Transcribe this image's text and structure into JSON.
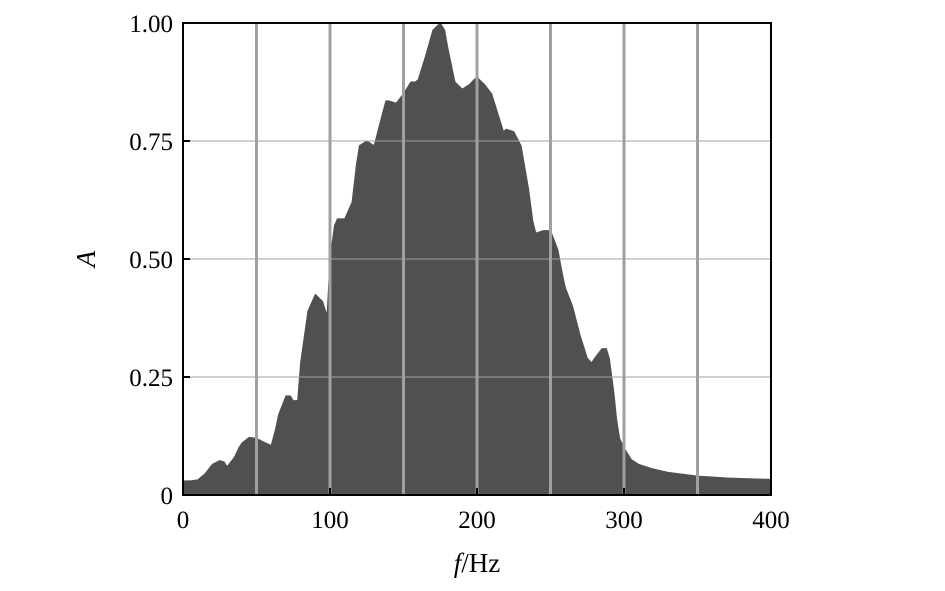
{
  "chart_data": {
    "type": "area",
    "title": "",
    "xlabel_symbol": "f",
    "xlabel_unit": "/Hz",
    "ylabel": "A",
    "xlim": [
      0,
      400
    ],
    "ylim": [
      0,
      1.0
    ],
    "x_ticks": [
      0,
      100,
      200,
      300,
      400
    ],
    "x_tick_labels": [
      "0",
      "100",
      "200",
      "300",
      "400"
    ],
    "y_ticks": [
      0,
      0.25,
      0.5,
      0.75,
      1.0
    ],
    "y_tick_labels": [
      "0",
      "0.25",
      "0.50",
      "0.75",
      "1.00"
    ],
    "x_gridlines": [
      50,
      100,
      150,
      200,
      250,
      300,
      350
    ],
    "y_gridlines": [
      0.25,
      0.5,
      0.75
    ],
    "grid": true,
    "fill_color": "#505050",
    "grid_color": "#a0a0a0",
    "x": [
      0,
      5,
      10,
      15,
      20,
      25,
      28,
      30,
      35,
      38,
      40,
      45,
      50,
      55,
      60,
      63,
      65,
      70,
      73,
      75,
      78,
      80,
      85,
      90,
      95,
      98,
      100,
      103,
      105,
      110,
      115,
      118,
      120,
      125,
      130,
      135,
      138,
      140,
      145,
      150,
      155,
      158,
      160,
      165,
      170,
      175,
      178,
      180,
      185,
      190,
      195,
      198,
      200,
      205,
      210,
      215,
      218,
      220,
      225,
      230,
      235,
      238,
      240,
      245,
      250,
      255,
      258,
      260,
      265,
      270,
      275,
      278,
      280,
      285,
      288,
      290,
      293,
      295,
      297,
      300,
      305,
      310,
      320,
      330,
      340,
      350,
      360,
      370,
      380,
      390,
      400
    ],
    "y": [
      0.03,
      0.03,
      0.032,
      0.045,
      0.065,
      0.073,
      0.07,
      0.06,
      0.08,
      0.1,
      0.11,
      0.122,
      0.12,
      0.112,
      0.105,
      0.14,
      0.17,
      0.21,
      0.21,
      0.2,
      0.2,
      0.28,
      0.39,
      0.425,
      0.41,
      0.38,
      0.5,
      0.57,
      0.585,
      0.585,
      0.62,
      0.7,
      0.74,
      0.75,
      0.74,
      0.8,
      0.835,
      0.835,
      0.83,
      0.85,
      0.875,
      0.875,
      0.88,
      0.93,
      0.985,
      1.0,
      0.985,
      0.95,
      0.875,
      0.86,
      0.87,
      0.88,
      0.885,
      0.87,
      0.85,
      0.8,
      0.77,
      0.775,
      0.77,
      0.74,
      0.65,
      0.58,
      0.555,
      0.56,
      0.56,
      0.52,
      0.47,
      0.44,
      0.4,
      0.34,
      0.29,
      0.28,
      0.29,
      0.31,
      0.31,
      0.29,
      0.22,
      0.16,
      0.12,
      0.1,
      0.075,
      0.065,
      0.055,
      0.048,
      0.044,
      0.04,
      0.038,
      0.036,
      0.035,
      0.034,
      0.033
    ]
  }
}
